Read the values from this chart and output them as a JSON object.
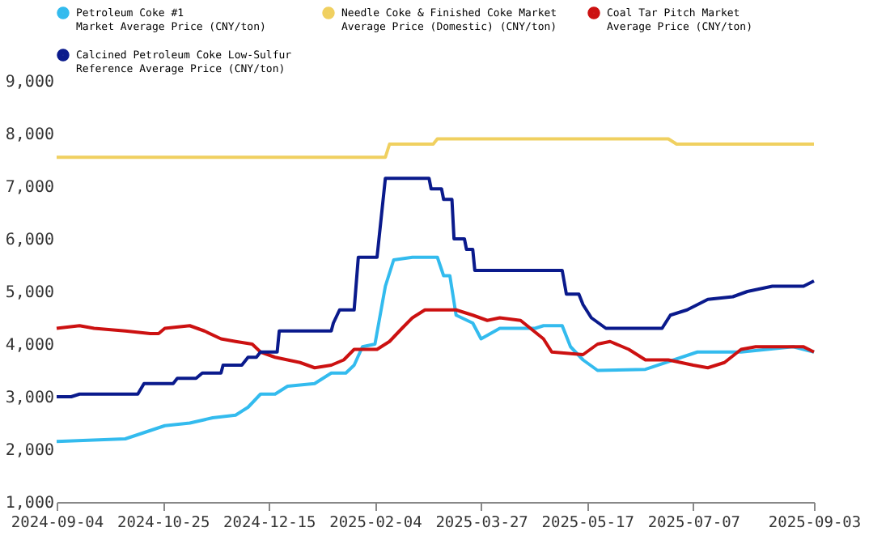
{
  "chart_data": {
    "type": "line",
    "legend": "top",
    "grid": false,
    "marker": "none",
    "line_style": "solid",
    "xlim": [
      "2024-09-04",
      "2025-09-03"
    ],
    "xticks": [
      "2024-09-04",
      "2024-10-25",
      "2024-12-15",
      "2025-02-04",
      "2025-03-27",
      "2025-05-17",
      "2025-07-07",
      "2025-09-03"
    ],
    "ylim": [
      1000,
      9000
    ],
    "yticks": [
      {
        "value": 1000,
        "label": "1,000"
      },
      {
        "value": 2000,
        "label": "2,000"
      },
      {
        "value": 3000,
        "label": "3,000"
      },
      {
        "value": 4000,
        "label": "4,000"
      },
      {
        "value": 5000,
        "label": "5,000"
      },
      {
        "value": 6000,
        "label": "6,000"
      },
      {
        "value": 7000,
        "label": "7,000"
      },
      {
        "value": 8000,
        "label": "8,000"
      },
      {
        "value": 9000,
        "label": "9,000"
      }
    ],
    "series": [
      {
        "name": "Petroleum Coke #1\nMarket Average Price (CNY/ton)",
        "color": "#33bbee",
        "x": [
          "2024-09-04",
          "2024-10-07",
          "2024-10-26",
          "2024-11-07",
          "2024-11-18",
          "2024-11-29",
          "2024-12-05",
          "2024-12-11",
          "2024-12-18",
          "2024-12-24",
          "2025-01-06",
          "2025-01-14",
          "2025-01-21",
          "2025-01-25",
          "2025-01-29",
          "2025-02-04",
          "2025-02-09",
          "2025-02-13",
          "2025-02-22",
          "2025-03-06",
          "2025-03-09",
          "2025-03-12",
          "2025-03-15",
          "2025-03-23",
          "2025-03-27",
          "2025-04-05",
          "2025-04-22",
          "2025-04-26",
          "2025-05-05",
          "2025-05-09",
          "2025-05-15",
          "2025-05-22",
          "2025-06-14",
          "2025-07-09",
          "2025-07-30",
          "2025-08-24",
          "2025-09-03"
        ],
        "values": [
          2150,
          2200,
          2450,
          2500,
          2600,
          2650,
          2800,
          3050,
          3050,
          3200,
          3250,
          3450,
          3450,
          3600,
          3950,
          4000,
          5100,
          5600,
          5650,
          5650,
          5300,
          5300,
          4550,
          4400,
          4100,
          4300,
          4300,
          4350,
          4350,
          3950,
          3700,
          3500,
          3520,
          3850,
          3850,
          3950,
          3850
        ]
      },
      {
        "name": "Needle Coke & Finished Coke Market\nAverage Price (Domestic) (CNY/ton)",
        "color": "#f0d060",
        "x": [
          "2024-09-04",
          "2025-02-09",
          "2025-02-11",
          "2025-03-04",
          "2025-03-06",
          "2025-06-25",
          "2025-06-29",
          "2025-09-03"
        ],
        "values": [
          7550,
          7550,
          7800,
          7800,
          7900,
          7900,
          7800,
          7800
        ]
      },
      {
        "name": "Coal Tar Pitch Market\nAverage Price (CNY/ton)",
        "color": "#cc1111",
        "x": [
          "2024-09-04",
          "2024-09-15",
          "2024-09-22",
          "2024-10-07",
          "2024-10-19",
          "2024-10-23",
          "2024-10-26",
          "2024-11-07",
          "2024-11-14",
          "2024-11-22",
          "2024-11-29",
          "2024-12-07",
          "2024-12-11",
          "2024-12-18",
          "2024-12-30",
          "2025-01-06",
          "2025-01-14",
          "2025-01-20",
          "2025-01-25",
          "2025-02-05",
          "2025-02-11",
          "2025-02-17",
          "2025-02-22",
          "2025-02-28",
          "2025-03-15",
          "2025-03-23",
          "2025-03-30",
          "2025-04-05",
          "2025-04-15",
          "2025-04-26",
          "2025-04-30",
          "2025-05-15",
          "2025-05-22",
          "2025-05-28",
          "2025-06-06",
          "2025-06-14",
          "2025-06-25",
          "2025-07-07",
          "2025-07-14",
          "2025-07-22",
          "2025-07-30",
          "2025-08-06",
          "2025-08-29",
          "2025-09-03"
        ],
        "values": [
          4300,
          4350,
          4300,
          4250,
          4200,
          4200,
          4300,
          4350,
          4250,
          4100,
          4050,
          4000,
          3850,
          3750,
          3650,
          3550,
          3600,
          3700,
          3900,
          3900,
          4050,
          4300,
          4500,
          4650,
          4650,
          4550,
          4450,
          4500,
          4450,
          4100,
          3850,
          3800,
          4000,
          4050,
          3900,
          3700,
          3700,
          3600,
          3550,
          3650,
          3900,
          3950,
          3950,
          3850
        ]
      },
      {
        "name": "Calcined Petroleum Coke Low-Sulfur\nReference Average Price (CNY/ton)",
        "color": "#0a1a8c",
        "x": [
          "2024-09-04",
          "2024-09-11",
          "2024-09-15",
          "2024-10-13",
          "2024-10-16",
          "2024-10-30",
          "2024-11-01",
          "2024-11-10",
          "2024-11-13",
          "2024-11-22",
          "2024-11-23",
          "2024-12-02",
          "2024-12-05",
          "2024-12-09",
          "2024-12-11",
          "2024-12-19",
          "2024-12-20",
          "2025-01-14",
          "2025-01-15",
          "2025-01-18",
          "2025-01-25",
          "2025-01-27",
          "2025-02-05",
          "2025-02-09",
          "2025-03-02",
          "2025-03-03",
          "2025-03-08",
          "2025-03-09",
          "2025-03-13",
          "2025-03-14",
          "2025-03-19",
          "2025-03-20",
          "2025-03-23",
          "2025-03-24",
          "2025-05-05",
          "2025-05-07",
          "2025-05-13",
          "2025-05-15",
          "2025-05-19",
          "2025-05-26",
          "2025-06-22",
          "2025-06-26",
          "2025-07-04",
          "2025-07-14",
          "2025-07-26",
          "2025-08-02",
          "2025-08-14",
          "2025-08-29",
          "2025-09-03"
        ],
        "values": [
          3000,
          3000,
          3050,
          3050,
          3250,
          3250,
          3350,
          3350,
          3450,
          3450,
          3600,
          3600,
          3750,
          3750,
          3850,
          3850,
          4250,
          4250,
          4400,
          4650,
          4650,
          5650,
          5650,
          7150,
          7150,
          6950,
          6950,
          6750,
          6750,
          6000,
          6000,
          5800,
          5800,
          5400,
          5400,
          4950,
          4950,
          4750,
          4500,
          4300,
          4300,
          4550,
          4650,
          4850,
          4900,
          5000,
          5100,
          5100,
          5200
        ]
      }
    ]
  }
}
